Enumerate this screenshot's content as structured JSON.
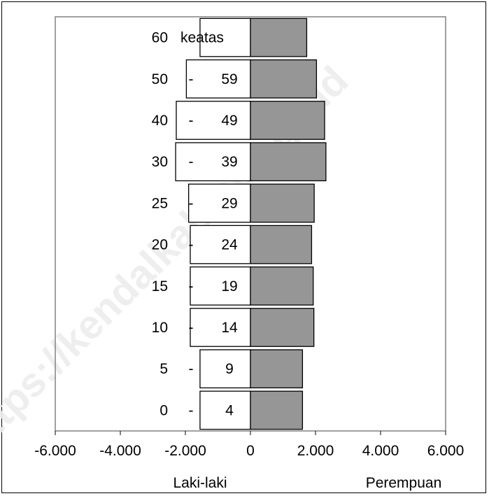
{
  "watermark": "https://kendalkab.bps.go.id",
  "chart_data": {
    "type": "bar",
    "orientation": "horizontal",
    "subtype": "population-pyramid",
    "categories": [
      "0",
      "5",
      "10",
      "15",
      "20",
      "25",
      "30",
      "40",
      "50",
      "60"
    ],
    "category_labels": [
      [
        "0",
        "-",
        "4"
      ],
      [
        "5",
        "-",
        "9"
      ],
      [
        "10",
        "-",
        "14"
      ],
      [
        "15",
        "-",
        "19"
      ],
      [
        "20",
        "-",
        "24"
      ],
      [
        "25",
        "-",
        "29"
      ],
      [
        "30",
        "-",
        "39"
      ],
      [
        "40",
        "-",
        "49"
      ],
      [
        "50",
        "-",
        "59"
      ],
      [
        "60",
        "",
        "keatas"
      ]
    ],
    "series": [
      {
        "name": "Laki-laki",
        "values": [
          -1550,
          -1550,
          -1850,
          -1850,
          -1850,
          -1900,
          -2300,
          -2280,
          -1970,
          -1550
        ],
        "color": "#ffffff"
      },
      {
        "name": "Perempuan",
        "values": [
          1600,
          1600,
          1950,
          1930,
          1880,
          1960,
          2320,
          2280,
          2030,
          1730
        ],
        "color": "#969696"
      }
    ],
    "xlim": [
      -6000,
      6000
    ],
    "xticks": [
      -6000,
      -4000,
      -2000,
      0,
      2000,
      4000,
      6000
    ],
    "xtick_labels": [
      "-6.000",
      "-4.000",
      "-2.000",
      "0",
      "2.000",
      "4.000",
      "6.000"
    ],
    "xlabel_left": "Laki-laki",
    "xlabel_right": "Perempuan",
    "grid": false,
    "legend": "none"
  }
}
